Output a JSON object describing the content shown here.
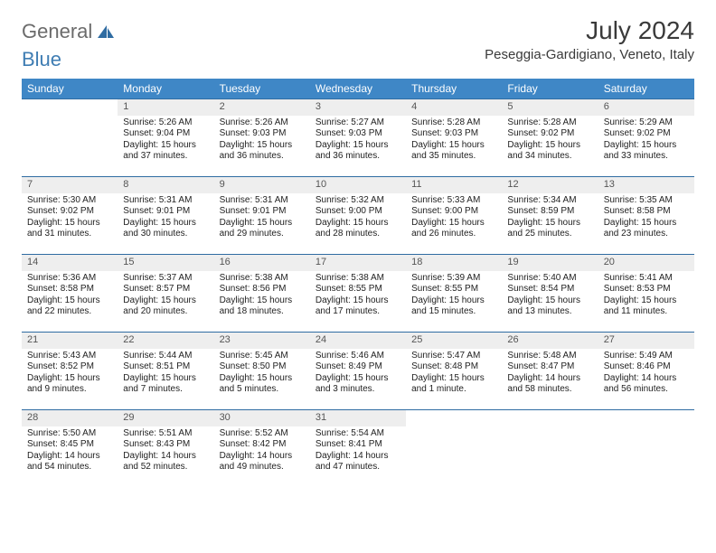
{
  "logo": {
    "text1": "General",
    "text2": "Blue"
  },
  "title": "July 2024",
  "location": "Peseggia-Gardigiano, Veneto, Italy",
  "colors": {
    "header_bg": "#3f87c6",
    "header_text": "#ffffff",
    "daynum_bg": "#eeeeee",
    "border": "#2f6ca2",
    "logo_gray": "#6b6b6b",
    "logo_blue": "#3f7db3"
  },
  "day_headers": [
    "Sunday",
    "Monday",
    "Tuesday",
    "Wednesday",
    "Thursday",
    "Friday",
    "Saturday"
  ],
  "weeks": [
    [
      {
        "num": "",
        "sunrise": "",
        "sunset": "",
        "daylight": ""
      },
      {
        "num": "1",
        "sunrise": "Sunrise: 5:26 AM",
        "sunset": "Sunset: 9:04 PM",
        "daylight": "Daylight: 15 hours and 37 minutes."
      },
      {
        "num": "2",
        "sunrise": "Sunrise: 5:26 AM",
        "sunset": "Sunset: 9:03 PM",
        "daylight": "Daylight: 15 hours and 36 minutes."
      },
      {
        "num": "3",
        "sunrise": "Sunrise: 5:27 AM",
        "sunset": "Sunset: 9:03 PM",
        "daylight": "Daylight: 15 hours and 36 minutes."
      },
      {
        "num": "4",
        "sunrise": "Sunrise: 5:28 AM",
        "sunset": "Sunset: 9:03 PM",
        "daylight": "Daylight: 15 hours and 35 minutes."
      },
      {
        "num": "5",
        "sunrise": "Sunrise: 5:28 AM",
        "sunset": "Sunset: 9:02 PM",
        "daylight": "Daylight: 15 hours and 34 minutes."
      },
      {
        "num": "6",
        "sunrise": "Sunrise: 5:29 AM",
        "sunset": "Sunset: 9:02 PM",
        "daylight": "Daylight: 15 hours and 33 minutes."
      }
    ],
    [
      {
        "num": "7",
        "sunrise": "Sunrise: 5:30 AM",
        "sunset": "Sunset: 9:02 PM",
        "daylight": "Daylight: 15 hours and 31 minutes."
      },
      {
        "num": "8",
        "sunrise": "Sunrise: 5:31 AM",
        "sunset": "Sunset: 9:01 PM",
        "daylight": "Daylight: 15 hours and 30 minutes."
      },
      {
        "num": "9",
        "sunrise": "Sunrise: 5:31 AM",
        "sunset": "Sunset: 9:01 PM",
        "daylight": "Daylight: 15 hours and 29 minutes."
      },
      {
        "num": "10",
        "sunrise": "Sunrise: 5:32 AM",
        "sunset": "Sunset: 9:00 PM",
        "daylight": "Daylight: 15 hours and 28 minutes."
      },
      {
        "num": "11",
        "sunrise": "Sunrise: 5:33 AM",
        "sunset": "Sunset: 9:00 PM",
        "daylight": "Daylight: 15 hours and 26 minutes."
      },
      {
        "num": "12",
        "sunrise": "Sunrise: 5:34 AM",
        "sunset": "Sunset: 8:59 PM",
        "daylight": "Daylight: 15 hours and 25 minutes."
      },
      {
        "num": "13",
        "sunrise": "Sunrise: 5:35 AM",
        "sunset": "Sunset: 8:58 PM",
        "daylight": "Daylight: 15 hours and 23 minutes."
      }
    ],
    [
      {
        "num": "14",
        "sunrise": "Sunrise: 5:36 AM",
        "sunset": "Sunset: 8:58 PM",
        "daylight": "Daylight: 15 hours and 22 minutes."
      },
      {
        "num": "15",
        "sunrise": "Sunrise: 5:37 AM",
        "sunset": "Sunset: 8:57 PM",
        "daylight": "Daylight: 15 hours and 20 minutes."
      },
      {
        "num": "16",
        "sunrise": "Sunrise: 5:38 AM",
        "sunset": "Sunset: 8:56 PM",
        "daylight": "Daylight: 15 hours and 18 minutes."
      },
      {
        "num": "17",
        "sunrise": "Sunrise: 5:38 AM",
        "sunset": "Sunset: 8:55 PM",
        "daylight": "Daylight: 15 hours and 17 minutes."
      },
      {
        "num": "18",
        "sunrise": "Sunrise: 5:39 AM",
        "sunset": "Sunset: 8:55 PM",
        "daylight": "Daylight: 15 hours and 15 minutes."
      },
      {
        "num": "19",
        "sunrise": "Sunrise: 5:40 AM",
        "sunset": "Sunset: 8:54 PM",
        "daylight": "Daylight: 15 hours and 13 minutes."
      },
      {
        "num": "20",
        "sunrise": "Sunrise: 5:41 AM",
        "sunset": "Sunset: 8:53 PM",
        "daylight": "Daylight: 15 hours and 11 minutes."
      }
    ],
    [
      {
        "num": "21",
        "sunrise": "Sunrise: 5:43 AM",
        "sunset": "Sunset: 8:52 PM",
        "daylight": "Daylight: 15 hours and 9 minutes."
      },
      {
        "num": "22",
        "sunrise": "Sunrise: 5:44 AM",
        "sunset": "Sunset: 8:51 PM",
        "daylight": "Daylight: 15 hours and 7 minutes."
      },
      {
        "num": "23",
        "sunrise": "Sunrise: 5:45 AM",
        "sunset": "Sunset: 8:50 PM",
        "daylight": "Daylight: 15 hours and 5 minutes."
      },
      {
        "num": "24",
        "sunrise": "Sunrise: 5:46 AM",
        "sunset": "Sunset: 8:49 PM",
        "daylight": "Daylight: 15 hours and 3 minutes."
      },
      {
        "num": "25",
        "sunrise": "Sunrise: 5:47 AM",
        "sunset": "Sunset: 8:48 PM",
        "daylight": "Daylight: 15 hours and 1 minute."
      },
      {
        "num": "26",
        "sunrise": "Sunrise: 5:48 AM",
        "sunset": "Sunset: 8:47 PM",
        "daylight": "Daylight: 14 hours and 58 minutes."
      },
      {
        "num": "27",
        "sunrise": "Sunrise: 5:49 AM",
        "sunset": "Sunset: 8:46 PM",
        "daylight": "Daylight: 14 hours and 56 minutes."
      }
    ],
    [
      {
        "num": "28",
        "sunrise": "Sunrise: 5:50 AM",
        "sunset": "Sunset: 8:45 PM",
        "daylight": "Daylight: 14 hours and 54 minutes."
      },
      {
        "num": "29",
        "sunrise": "Sunrise: 5:51 AM",
        "sunset": "Sunset: 8:43 PM",
        "daylight": "Daylight: 14 hours and 52 minutes."
      },
      {
        "num": "30",
        "sunrise": "Sunrise: 5:52 AM",
        "sunset": "Sunset: 8:42 PM",
        "daylight": "Daylight: 14 hours and 49 minutes."
      },
      {
        "num": "31",
        "sunrise": "Sunrise: 5:54 AM",
        "sunset": "Sunset: 8:41 PM",
        "daylight": "Daylight: 14 hours and 47 minutes."
      },
      {
        "num": "",
        "sunrise": "",
        "sunset": "",
        "daylight": ""
      },
      {
        "num": "",
        "sunrise": "",
        "sunset": "",
        "daylight": ""
      },
      {
        "num": "",
        "sunrise": "",
        "sunset": "",
        "daylight": ""
      }
    ]
  ]
}
